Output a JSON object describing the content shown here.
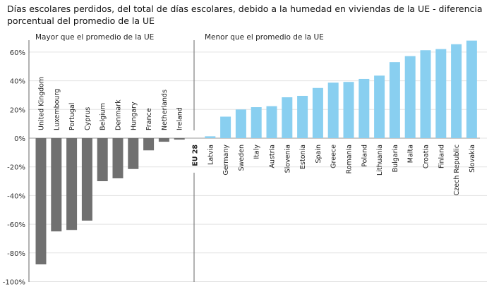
{
  "chart_data": {
    "type": "bar",
    "title": "Días escolares perdidos, del total de días escolares, debido a la humedad en viviendas de la UE - diferencia porcentual del promedio de la UE",
    "section_labels": [
      "Mayor que el promedio de la UE",
      "Menor  que el promedio de la UE"
    ],
    "categories": [
      "United Kingdom",
      "Luxembourg",
      "Portugal",
      "Cyprus",
      "Belgium",
      "Denmark",
      "Hungary",
      "France",
      "Netherlands",
      "Ireland",
      "EU 28",
      "Latvia",
      "Germany",
      "Sweden",
      "Italy",
      "Austria",
      "Slovenia",
      "Estonia",
      "Spain",
      "Greece",
      "Romania",
      "Poland",
      "Lithuania",
      "Bulgaria",
      "Malta",
      "Croatia",
      "Finland",
      "Czech Republic",
      "Slovakia"
    ],
    "values": [
      -88,
      -65,
      -64,
      -57.5,
      -30,
      -28,
      -21.5,
      -8.5,
      -2.5,
      -1,
      0,
      1.3,
      15,
      20,
      21.6,
      22.3,
      28.5,
      29.5,
      35,
      38.7,
      39.2,
      41.3,
      43.6,
      53,
      57.2,
      61.3,
      62.1,
      65.5,
      68
    ],
    "ylim": [
      -100,
      70
    ],
    "yticks": [
      -100,
      -80,
      -60,
      -40,
      -20,
      0,
      20,
      40,
      60
    ],
    "ytick_labels": [
      "-100%",
      "-80%",
      "-60%",
      "-40%",
      "-20%",
      "0%",
      "20%",
      "40%",
      "60%"
    ],
    "grid": true,
    "colors": {
      "above": "#707070",
      "below": "#89CFF0",
      "grid": "#e3e3e3",
      "axis": "#666666"
    }
  }
}
